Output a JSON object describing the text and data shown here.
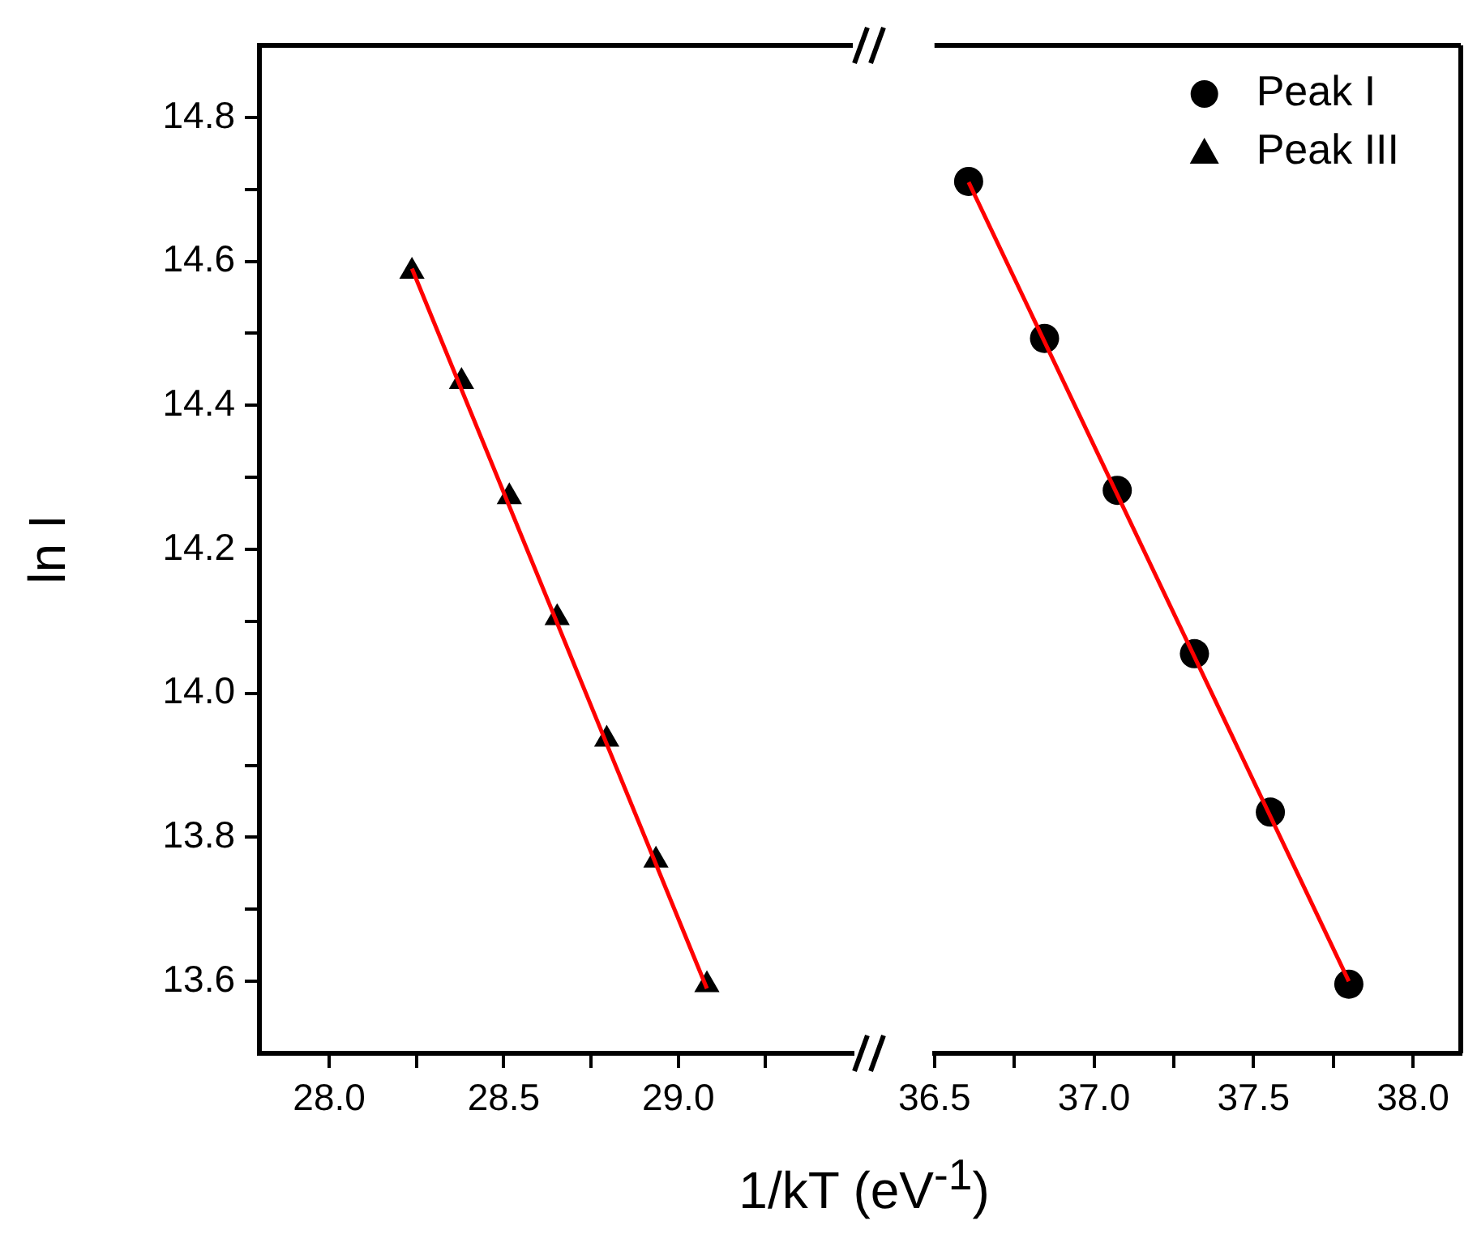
{
  "chart_data": [
    {
      "type": "scatter",
      "xlabel": "1/kT (eV$^{-1}$)",
      "ylabel": "ln I",
      "xlim": [
        27.8,
        29.5
      ],
      "ylim": [
        13.5,
        14.9
      ],
      "xticks": [
        {
          "value": 28,
          "label": "28.0"
        },
        {
          "value": 28.25,
          "label": null
        },
        28.5,
        {
          "value": 28.75,
          "label": null
        },
        {
          "value": 29,
          "label": "29.0"
        },
        {
          "value": 29.25,
          "label": null
        }
      ],
      "yticks": [
        13.6,
        {
          "value": 13.7,
          "label": null
        },
        13.8,
        {
          "value": 13.9,
          "label": null
        },
        {
          "value": 14,
          "label": "14.0"
        },
        {
          "value": 14.1,
          "label": null
        },
        14.2,
        {
          "value": 14.3,
          "label": null
        },
        14.4,
        {
          "value": 14.5,
          "label": null
        },
        14.6,
        {
          "value": 14.7,
          "label": null
        },
        14.8
      ],
      "grid": false,
      "series": [
        {
          "type": "scatter",
          "name": "Peak III",
          "color": "#000000",
          "marker": "triangle",
          "x": [
            28.237,
            28.379,
            28.516,
            28.653,
            28.795,
            28.936,
            29.082
          ],
          "values": [
            14.586,
            14.433,
            14.273,
            14.105,
            13.936,
            13.768,
            13.595
          ]
        },
        {
          "type": "line",
          "color": "#ff0000",
          "marker": "none",
          "line_style": "solid",
          "x": [
            28.237,
            29.082
          ],
          "values": [
            14.59,
            13.59
          ]
        }
      ]
    },
    {
      "type": "scatter",
      "xlim": [
        36.5,
        38.15
      ],
      "ylim": [
        13.5,
        14.9
      ],
      "tick_labels": "x",
      "grid": false,
      "legend": "top right",
      "xticks": [
        {
          "value": 36.5,
          "label": "36.5"
        },
        {
          "value": 36.75,
          "label": null
        },
        {
          "value": 37,
          "label": "37.0"
        },
        {
          "value": 37.25,
          "label": null
        },
        37.5,
        {
          "value": 37.75,
          "label": null
        },
        {
          "value": 38,
          "label": "38.0"
        }
      ],
      "series": [
        {
          "type": "scatter",
          "name": "Peak I",
          "color": "#000000",
          "marker": "circle",
          "x": [
            36.607,
            36.845,
            37.073,
            37.315,
            37.553,
            37.799
          ],
          "values": [
            14.711,
            14.493,
            14.282,
            14.055,
            13.835,
            13.596
          ]
        },
        {
          "type": "line",
          "color": "#ff0000",
          "marker": "none",
          "line_style": "solid",
          "x": [
            36.607,
            37.799
          ],
          "values": [
            14.71,
            13.6
          ]
        }
      ]
    }
  ]
}
